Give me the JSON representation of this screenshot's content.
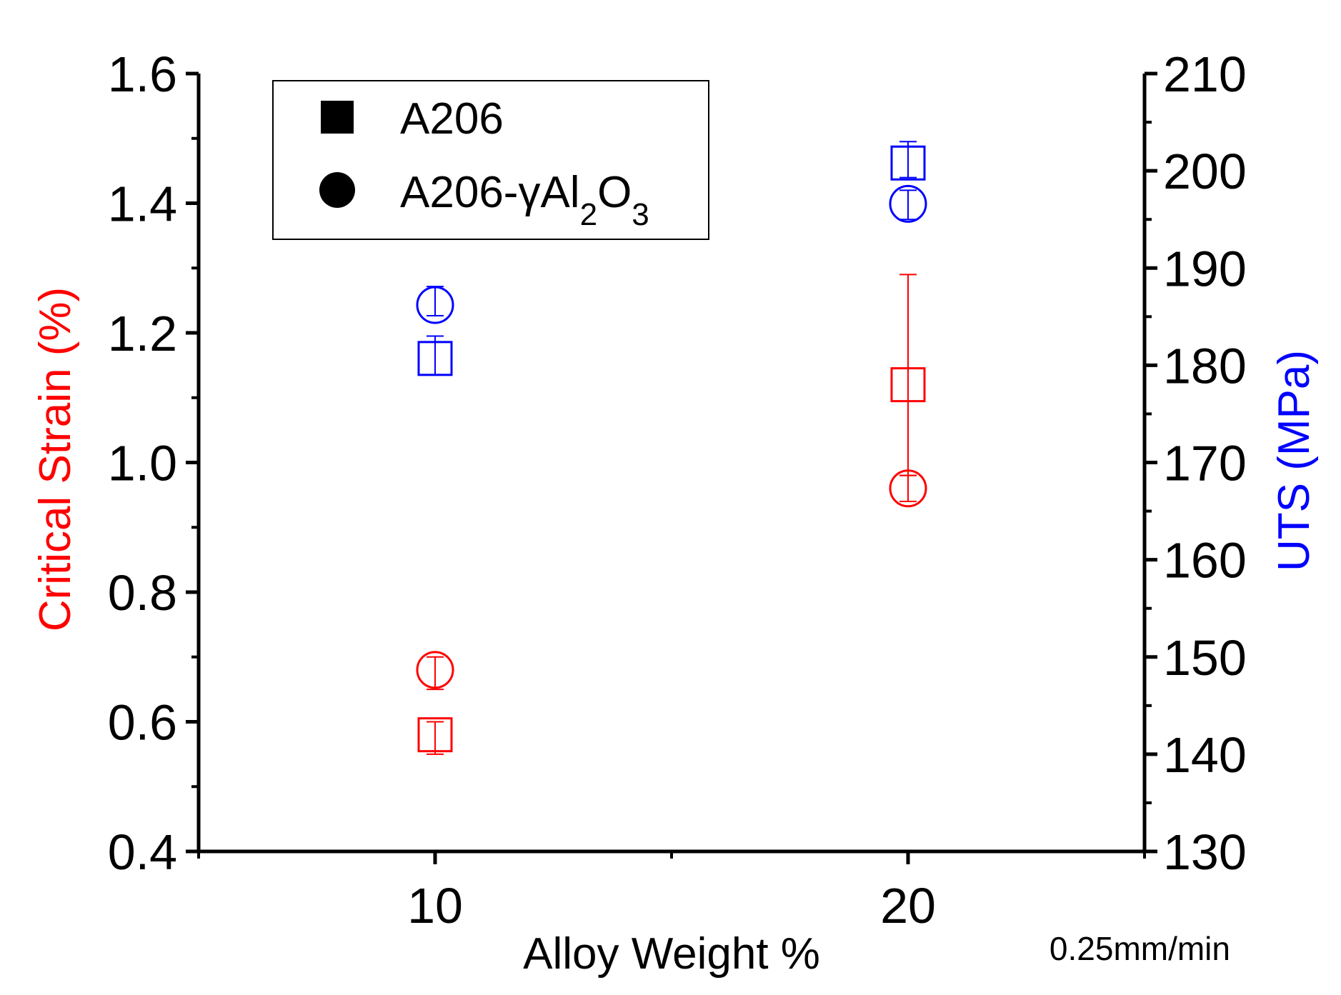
{
  "chart_data": {
    "type": "scatter",
    "xlabel": "Alloy Weight %",
    "ylabel_left": "Critical Strain (%)",
    "ylabel_right": "UTS (MPa)",
    "note": "0.25mm/min",
    "xlim": [
      5,
      25
    ],
    "ylim_left": [
      0.4,
      1.6
    ],
    "ylim_right": [
      130,
      210
    ],
    "x_ticks": [
      10,
      20
    ],
    "y_ticks_left": [
      "0.4",
      "0.6",
      "0.8",
      "1.0",
      "1.2",
      "1.4",
      "1.6"
    ],
    "y_ticks_right": [
      "130",
      "140",
      "150",
      "160",
      "170",
      "180",
      "190",
      "200",
      "210"
    ],
    "legend": {
      "placement": "top-left",
      "entries": [
        {
          "marker": "square",
          "label": "A206"
        },
        {
          "marker": "circle",
          "label_main": "A206-γAl",
          "sub1": "2",
          "mid": "O",
          "sub2": "3"
        }
      ]
    },
    "colors": {
      "left_axis": "#ff0000",
      "right_axis": "#0000ff",
      "axis": "#000000"
    },
    "series": [
      {
        "marker": "square",
        "axis": "left",
        "color": "#ff0000",
        "points": [
          {
            "x": 10,
            "y": 0.58,
            "err_low": 0.03,
            "err_high": 0.02
          },
          {
            "x": 20,
            "y": 1.12,
            "err_low": 0.14,
            "err_high": 0.17
          }
        ]
      },
      {
        "marker": "circle",
        "axis": "left",
        "color": "#ff0000",
        "points": [
          {
            "x": 10,
            "y": 0.68,
            "err_low": 0.03,
            "err_high": 0.02
          },
          {
            "x": 20,
            "y": 0.96,
            "err_low": 0.02,
            "err_high": 0.02
          }
        ]
      },
      {
        "marker": "square",
        "axis": "right",
        "color": "#0000ff",
        "points": [
          {
            "x": 10,
            "y": 180.7,
            "err_low": 1.7,
            "err_high": 2.3
          },
          {
            "x": 20,
            "y": 200.8,
            "err_low": 1.5,
            "err_high": 2.2
          }
        ]
      },
      {
        "marker": "circle",
        "axis": "right",
        "color": "#0000ff",
        "points": [
          {
            "x": 10,
            "y": 186.2,
            "err_low": 1.1,
            "err_high": 1.9
          },
          {
            "x": 20,
            "y": 196.6,
            "err_low": 1.6,
            "err_high": 1.4
          }
        ]
      }
    ]
  }
}
